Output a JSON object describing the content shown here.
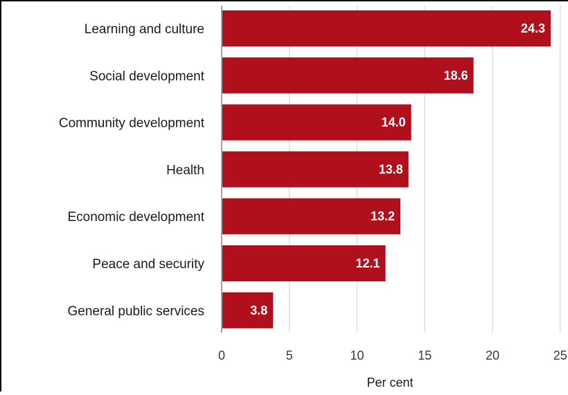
{
  "chart_data": {
    "type": "bar",
    "orientation": "horizontal",
    "categories": [
      "Learning and culture",
      "Social development",
      "Community development",
      "Health",
      "Economic development",
      "Peace and security",
      "General public services"
    ],
    "values": [
      24.3,
      18.6,
      14.0,
      13.8,
      13.2,
      12.1,
      3.8
    ],
    "value_labels": [
      "24.3",
      "18.6",
      "14.0",
      "13.8",
      "13.2",
      "12.1",
      "3.8"
    ],
    "xlabel": "Per cent",
    "ylabel": "",
    "title": "",
    "xlim": [
      0,
      25
    ],
    "xticks": [
      0,
      5,
      10,
      15,
      20,
      25
    ],
    "xtick_labels": [
      "0",
      "5",
      "10",
      "15",
      "20",
      "25"
    ],
    "grid": "vertical",
    "legend": "none",
    "bar_color": "#b0101c",
    "grid_color": "#d9d9d9"
  }
}
